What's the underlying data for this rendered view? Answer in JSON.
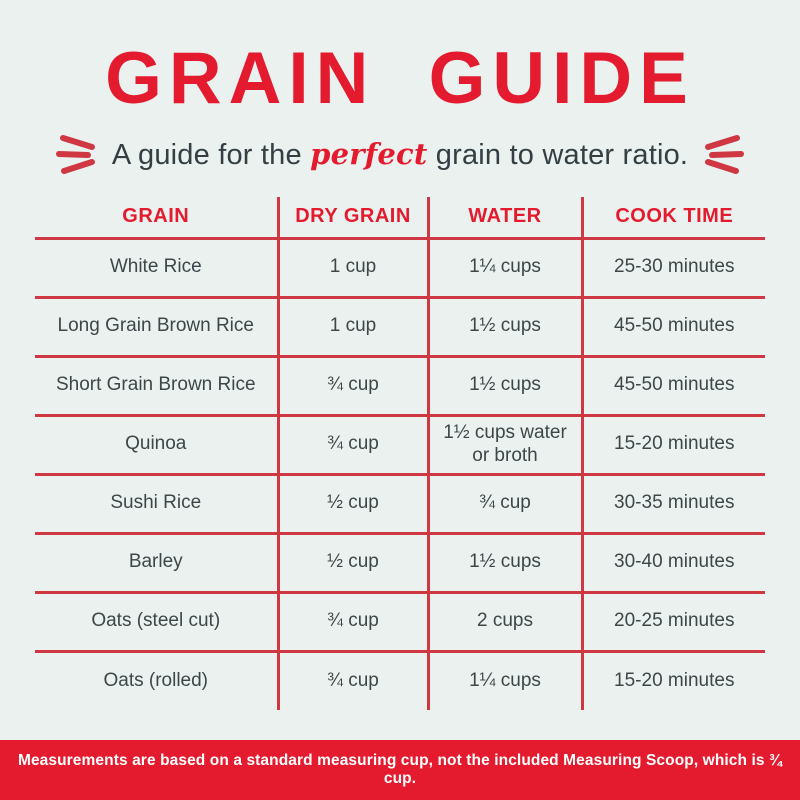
{
  "title": "GRAIN GUIDE",
  "subtitle": {
    "prefix": "A guide for the ",
    "highlight": "perfect",
    "suffix": " grain to water ratio."
  },
  "colors": {
    "accent_red": "#e41b2e",
    "line_red": "#cf3743",
    "text_dark": "#3d4649",
    "bg": "#eaf1ee",
    "banner_text": "#ffffff"
  },
  "chart_data": {
    "type": "table",
    "title": "GRAIN GUIDE",
    "subtitle": "A guide for the perfect grain to water ratio.",
    "columns": [
      "GRAIN",
      "DRY GRAIN",
      "WATER",
      "COOK TIME"
    ],
    "rows": [
      [
        "White Rice",
        "1 cup",
        "1¼ cups",
        "25-30 minutes"
      ],
      [
        "Long Grain Brown Rice",
        "1 cup",
        "1½ cups",
        "45-50 minutes"
      ],
      [
        "Short Grain Brown Rice",
        "¾ cup",
        "1½ cups",
        "45-50 minutes"
      ],
      [
        "Quinoa",
        "¾ cup",
        "1½ cups water or broth",
        "15-20 minutes"
      ],
      [
        "Sushi Rice",
        "½ cup",
        "¾ cup",
        "30-35 minutes"
      ],
      [
        "Barley",
        "½ cup",
        "1½ cups",
        "30-40 minutes"
      ],
      [
        "Oats (steel cut)",
        "¾ cup",
        "2 cups",
        "20-25 minutes"
      ],
      [
        "Oats (rolled)",
        "¾ cup",
        "1¼ cups",
        "15-20 minutes"
      ]
    ],
    "layout": {
      "grid": "red rules between rows and columns, no outer border",
      "header_color": "red"
    }
  },
  "footer": {
    "note": "Measurements are based on a standard measuring cup, not the included Measuring Scoop, which is ¾ cup."
  }
}
